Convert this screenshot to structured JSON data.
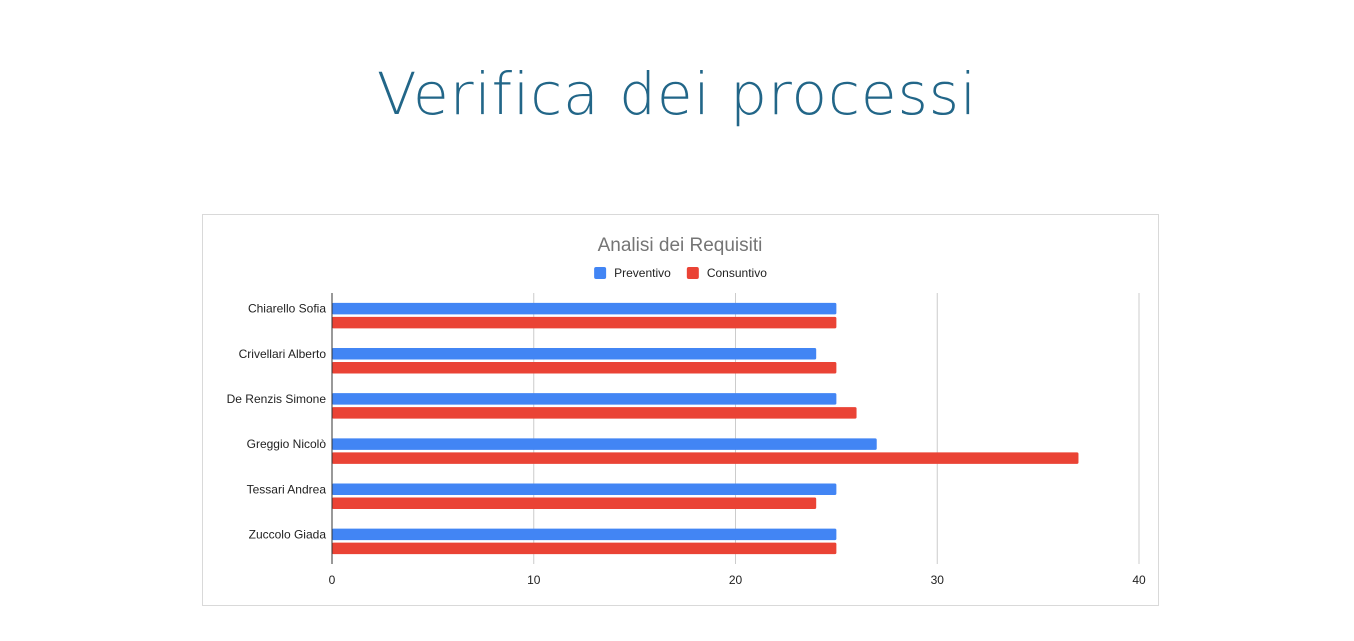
{
  "slide": {
    "title": "Verifica dei processi"
  },
  "chart_data": {
    "type": "bar",
    "orientation": "horizontal",
    "title": "Analisi dei Requisiti",
    "categories": [
      "Chiarello Sofia",
      "Crivellari Alberto",
      "De Renzis Simone",
      "Greggio Nicolò",
      "Tessari Andrea",
      "Zuccolo Giada"
    ],
    "series": [
      {
        "name": "Preventivo",
        "color": "#4285f4",
        "values": [
          25,
          24,
          25,
          27,
          25,
          25
        ]
      },
      {
        "name": "Consuntivo",
        "color": "#ea4335",
        "values": [
          25,
          25,
          26,
          37,
          24,
          25
        ]
      }
    ],
    "xlim": [
      0,
      40
    ],
    "xticks": [
      0,
      10,
      20,
      30,
      40
    ],
    "grid": true,
    "legend_position": "top"
  }
}
